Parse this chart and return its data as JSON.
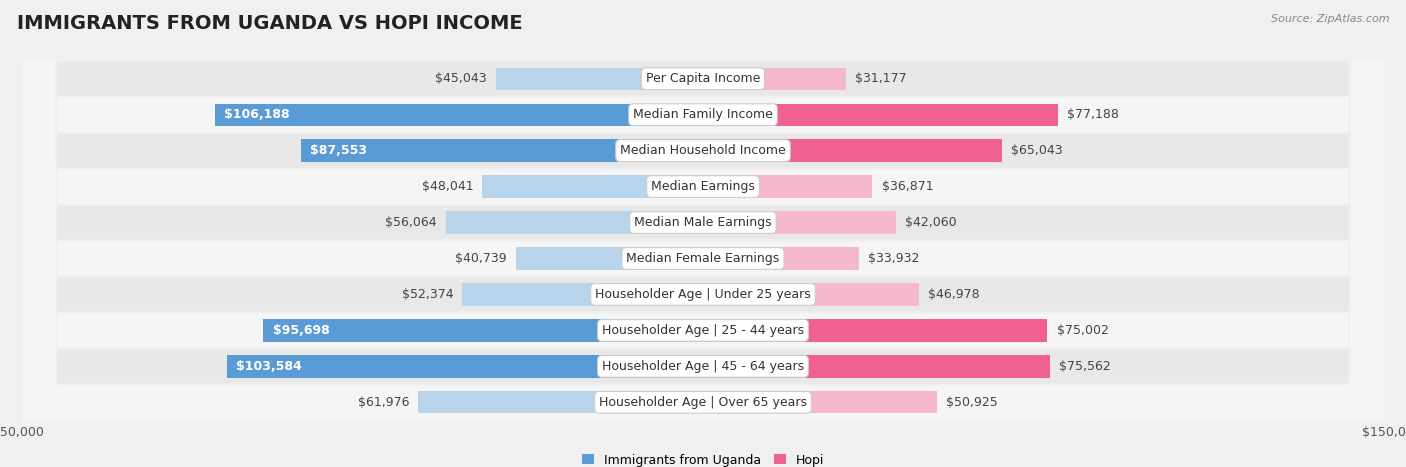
{
  "title": "IMMIGRANTS FROM UGANDA VS HOPI INCOME",
  "source": "Source: ZipAtlas.com",
  "categories": [
    "Per Capita Income",
    "Median Family Income",
    "Median Household Income",
    "Median Earnings",
    "Median Male Earnings",
    "Median Female Earnings",
    "Householder Age | Under 25 years",
    "Householder Age | 25 - 44 years",
    "Householder Age | 45 - 64 years",
    "Householder Age | Over 65 years"
  ],
  "uganda_values": [
    45043,
    106188,
    87553,
    48041,
    56064,
    40739,
    52374,
    95698,
    103584,
    61976
  ],
  "hopi_values": [
    31177,
    77188,
    65043,
    36871,
    42060,
    33932,
    46978,
    75002,
    75562,
    50925
  ],
  "uganda_labels": [
    "$45,043",
    "$106,188",
    "$87,553",
    "$48,041",
    "$56,064",
    "$40,739",
    "$52,374",
    "$95,698",
    "$103,584",
    "$61,976"
  ],
  "hopi_labels": [
    "$31,177",
    "$77,188",
    "$65,043",
    "$36,871",
    "$42,060",
    "$33,932",
    "$46,978",
    "$75,002",
    "$75,562",
    "$50,925"
  ],
  "uganda_color_light": "#b8d4ea",
  "uganda_color_dark": "#5b9bd5",
  "hopi_color_light": "#f5b8cc",
  "hopi_color_dark": "#f06090",
  "max_value": 150000,
  "row_colors": [
    "#e8e8e8",
    "#f5f5f5"
  ],
  "background_color": "#f0f0f0",
  "label_fontsize": 9,
  "title_fontsize": 14,
  "source_fontsize": 8,
  "legend_label_uganda": "Immigrants from Uganda",
  "legend_label_hopi": "Hopi",
  "uganda_inside_threshold": 80000,
  "hopi_inside_threshold": 60000
}
